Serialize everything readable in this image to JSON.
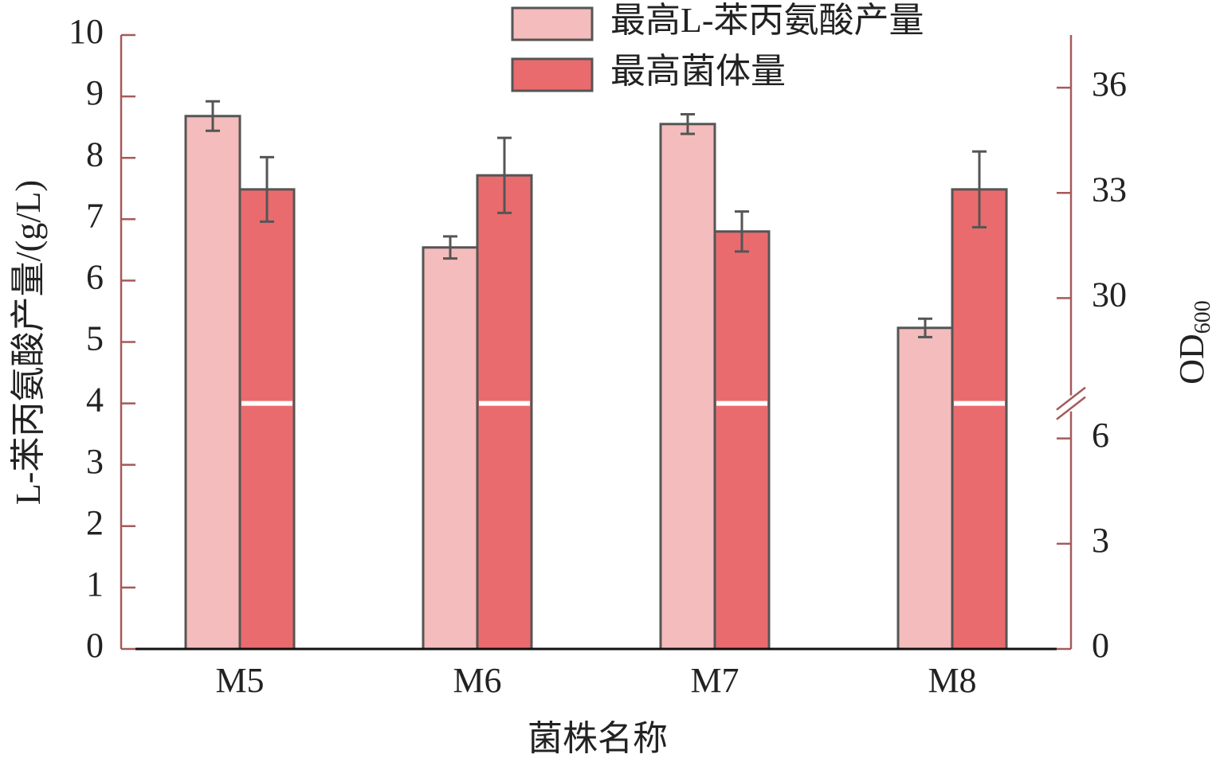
{
  "chart_data": {
    "type": "bar",
    "x_label": "菌株名称",
    "y_label": "L-苯丙氨酸产量/(g/L)",
    "y2_label": "OD",
    "y2_label_sub": "600",
    "categories": [
      "M5",
      "M6",
      "M7",
      "M8"
    ],
    "series": [
      {
        "name": "最高L-苯丙氨酸产量",
        "color": "#f4bcbc",
        "values": [
          8.68,
          6.54,
          8.55,
          5.23
        ],
        "errors": [
          0.24,
          0.18,
          0.16,
          0.15
        ]
      },
      {
        "name": "最高菌体量",
        "color": "#ea6b6d",
        "axis": "y2",
        "values": [
          33.1,
          33.5,
          31.9,
          33.1
        ],
        "errors": [
          0.92,
          1.07,
          0.57,
          1.08
        ]
      }
    ],
    "ylim": [
      0,
      10
    ],
    "yticks": [
      0,
      1,
      2,
      3,
      4,
      5,
      6,
      7,
      8,
      9,
      10
    ],
    "y2lim": [
      0,
      37.5
    ],
    "y2ticks": [
      0,
      3,
      6,
      30,
      33,
      36
    ],
    "y2_break": [
      7,
      27
    ],
    "legend": "top-right"
  }
}
